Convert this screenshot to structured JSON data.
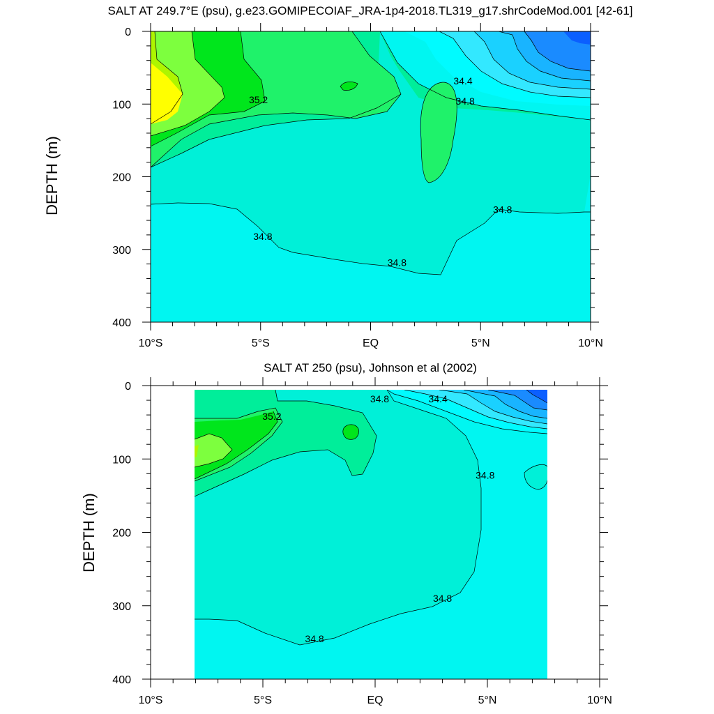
{
  "colors": {
    "sal_lt_34_0": "#0b5fff",
    "sal_34_0_34_1": "#1a8bff",
    "sal_34_1_34_2": "#19b4ff",
    "sal_34_2_34_3": "#1ad1ff",
    "sal_34_3_34_4": "#33e8ff",
    "sal_34_4_34_5": "#00fbff",
    "sal_34_5_34_6": "#00f6f1",
    "sal_34_6_34_8": "#00f0d8",
    "sal_34_8_35_0": "#00ee9a",
    "sal_35_0_35_2": "#1ff26a",
    "sal_35_2_35_4": "#00e61c",
    "sal_35_4_35_6": "#7dff3e",
    "sal_35_6_35_8": "#aef500",
    "sal_gt_35_8": "#ffff00",
    "axis": "#000000"
  },
  "chart_data": [
    {
      "type": "heatmap",
      "subtype": "filled-contour",
      "title": "SALT AT 249.7°E (psu), g.e23.GOMIPECOIAF_JRA-1p4-2018.TL319_g17.shrCodeMod.001 [42-61]",
      "xlabel": "",
      "ylabel": "DEPTH (m)",
      "x_ticks": [
        "10°S",
        "5°S",
        "EQ",
        "5°N",
        "10°N"
      ],
      "y_ticks": [
        "0",
        "100",
        "200",
        "300",
        "400"
      ],
      "xlim": [
        -10,
        10
      ],
      "ylim": [
        400,
        0
      ],
      "data_extent_x": [
        -10,
        10
      ],
      "contour_labels": [
        {
          "text": "34.4",
          "x": 4.2,
          "y": 68
        },
        {
          "text": "34.8",
          "x": 4.3,
          "y": 96
        },
        {
          "text": "35.2",
          "x": -5.1,
          "y": 94
        },
        {
          "text": "34.8",
          "x": 6.0,
          "y": 245
        },
        {
          "text": "34.8",
          "x": -4.9,
          "y": 282
        },
        {
          "text": "34.8",
          "x": 1.2,
          "y": 318
        }
      ]
    },
    {
      "type": "heatmap",
      "subtype": "filled-contour",
      "title": "SALT AT 250 (psu), Johnson et al (2002)",
      "xlabel": "",
      "ylabel": "DEPTH (m)",
      "x_ticks": [
        "10°S",
        "5°S",
        "EQ",
        "5°N",
        "10°N"
      ],
      "y_ticks": [
        "0",
        "100",
        "200",
        "300",
        "400"
      ],
      "xlim": [
        -10,
        10
      ],
      "ylim": [
        400,
        0
      ],
      "data_extent_x": [
        -8,
        8
      ],
      "contour_labels": [
        {
          "text": "35.2",
          "x": -4.6,
          "y": 42
        },
        {
          "text": "34.8",
          "x": 0.2,
          "y": 18
        },
        {
          "text": "34.4",
          "x": 2.8,
          "y": 18
        },
        {
          "text": "34.8",
          "x": 4.9,
          "y": 122
        },
        {
          "text": "34.8",
          "x": 3.0,
          "y": 290
        },
        {
          "text": "34.8",
          "x": -2.7,
          "y": 345
        }
      ]
    }
  ]
}
